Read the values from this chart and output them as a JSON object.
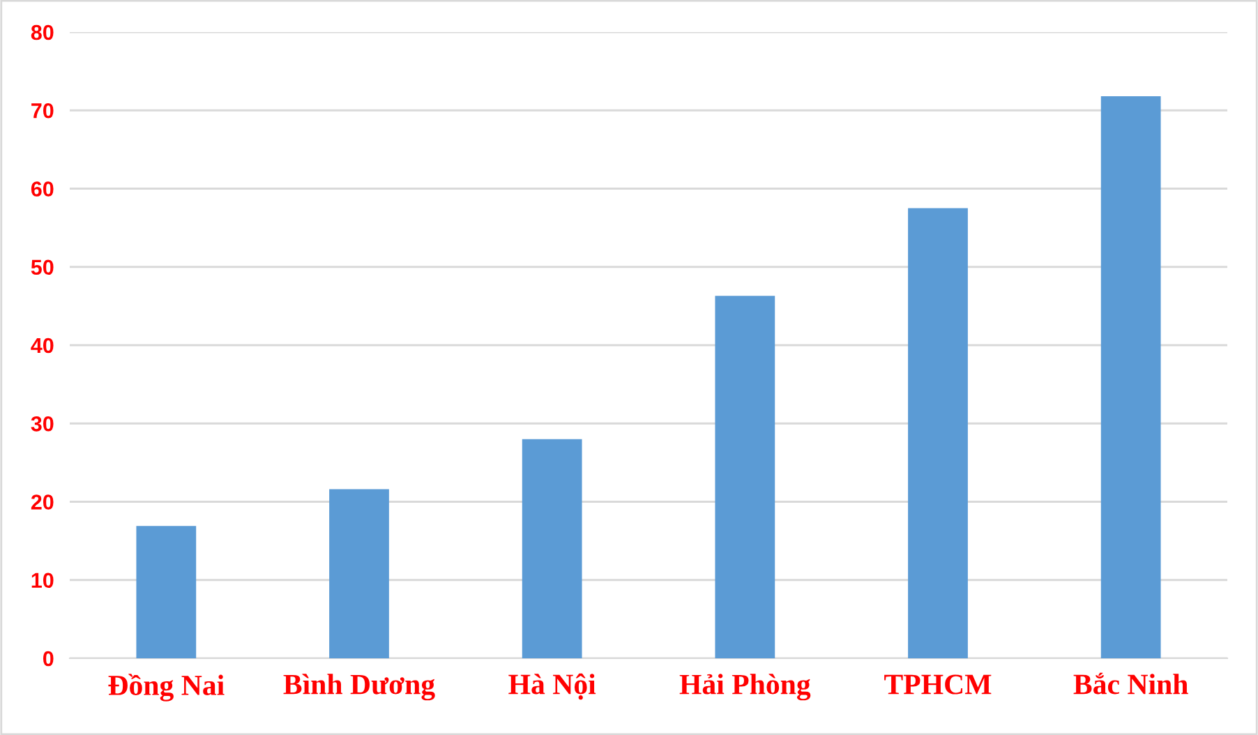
{
  "chart_data": {
    "type": "bar",
    "categories": [
      "Đồng Nai",
      "Bình Dương",
      "Hà Nội",
      "Hải Phòng",
      "TPHCM",
      "Bắc Ninh"
    ],
    "values": [
      16.9,
      21.6,
      28.0,
      46.3,
      57.5,
      71.8
    ],
    "color": "#5b9bd5",
    "ylim": [
      0,
      80
    ],
    "yticks": [
      0,
      10,
      20,
      30,
      40,
      50,
      60,
      70,
      80
    ],
    "grid": "y"
  }
}
